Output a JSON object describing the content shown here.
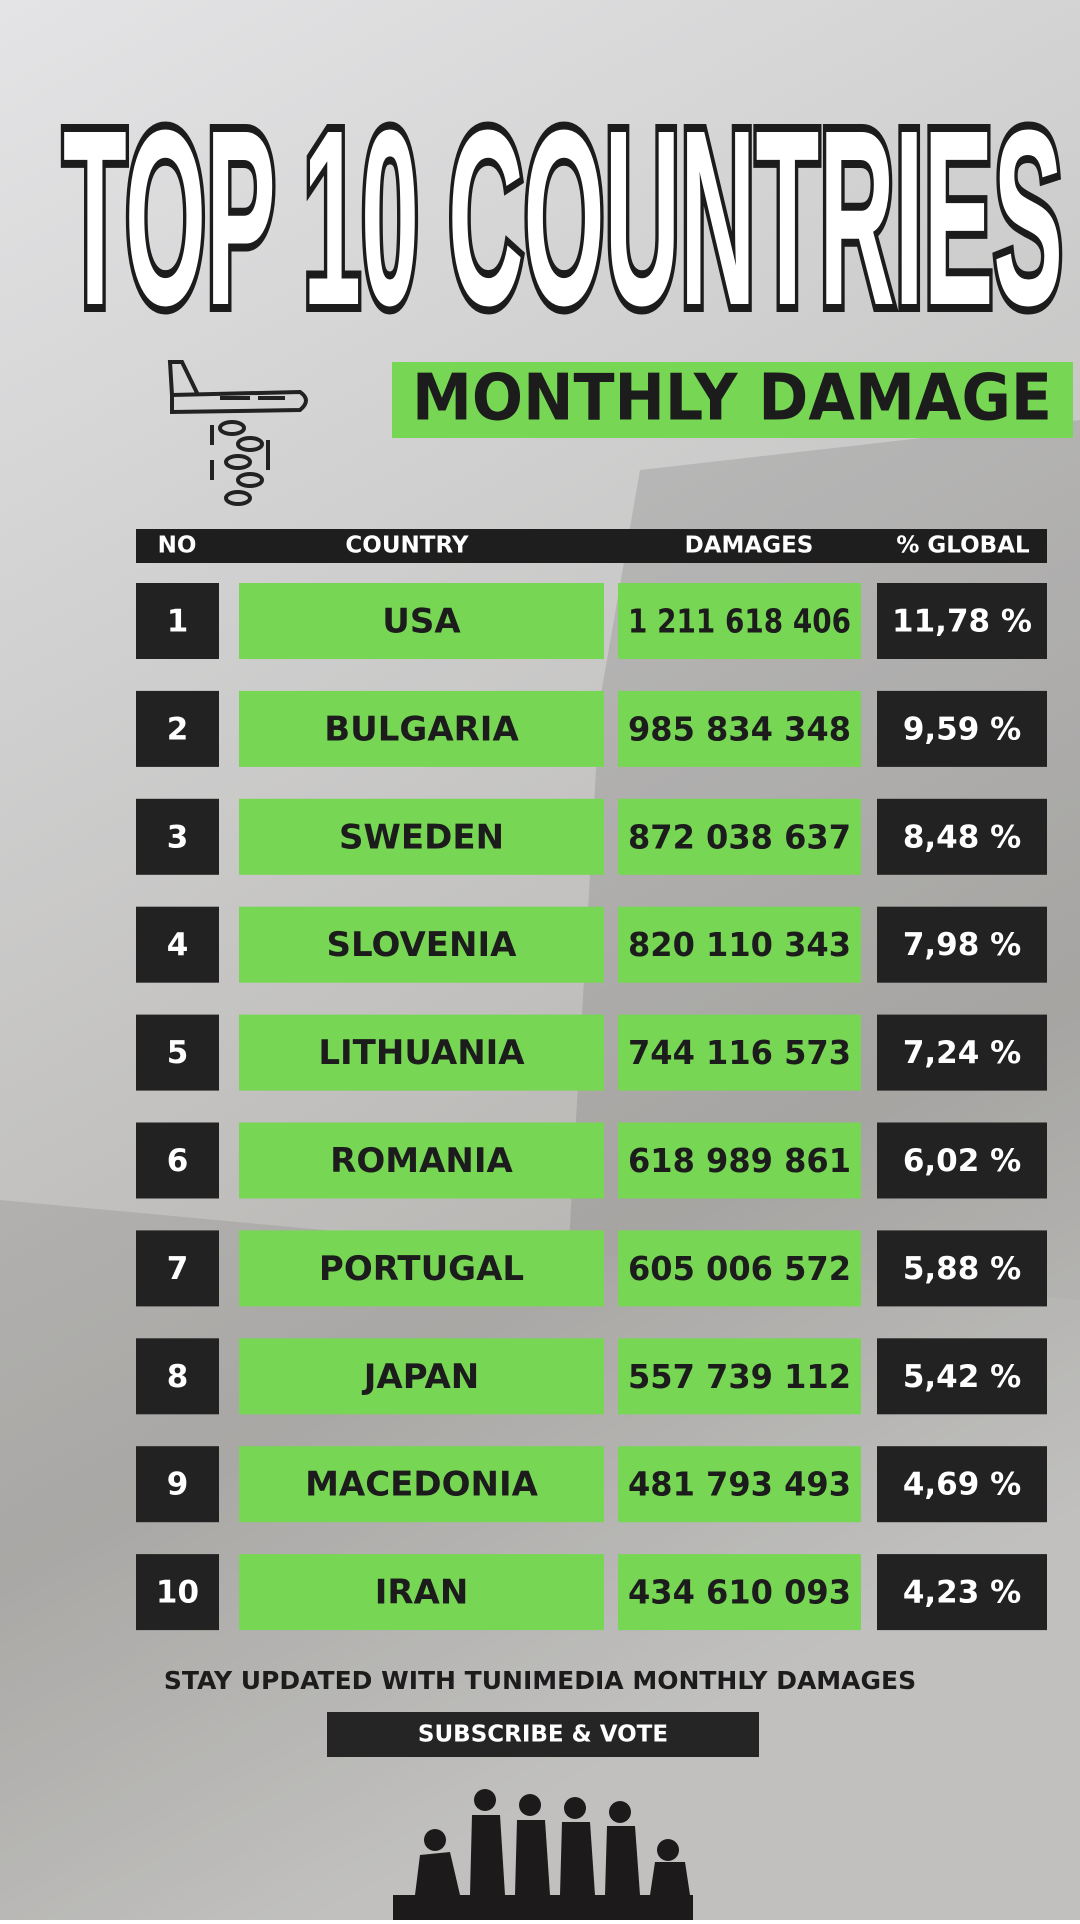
{
  "header": {
    "title": "TOP 10 COUNTRIES",
    "subtitle": "MONTHLY DAMAGE"
  },
  "table": {
    "columns": [
      "NO",
      "COUNTRY",
      "DAMAGES",
      "% GLOBAL"
    ],
    "rows": [
      [
        "1",
        "USA",
        "1 211 618 406",
        "11,78 %"
      ],
      [
        "2",
        "BULGARIA",
        "985 834 348",
        "9,59 %"
      ],
      [
        "3",
        "SWEDEN",
        "872 038 637",
        "8,48 %"
      ],
      [
        "4",
        "SLOVENIA",
        "820 110 343",
        "7,98 %"
      ],
      [
        "5",
        "LITHUANIA",
        "744 116 573",
        "7,24 %"
      ],
      [
        "6",
        "ROMANIA",
        "618 989 861",
        "6,02 %"
      ],
      [
        "7",
        "PORTUGAL",
        "605 006 572",
        "5,88 %"
      ],
      [
        "8",
        "JAPAN",
        "557 739 112",
        "5,42 %"
      ],
      [
        "9",
        "MACEDONIA",
        "481 793 493",
        "4,69 %"
      ],
      [
        "10",
        "IRAN",
        "434 610 093",
        "4,23 %"
      ]
    ]
  },
  "footer": {
    "text": "STAY UPDATED WITH TUNIMEDIA  MONTHLY DAMAGES",
    "button": "SUBSCRIBE & VOTE"
  }
}
